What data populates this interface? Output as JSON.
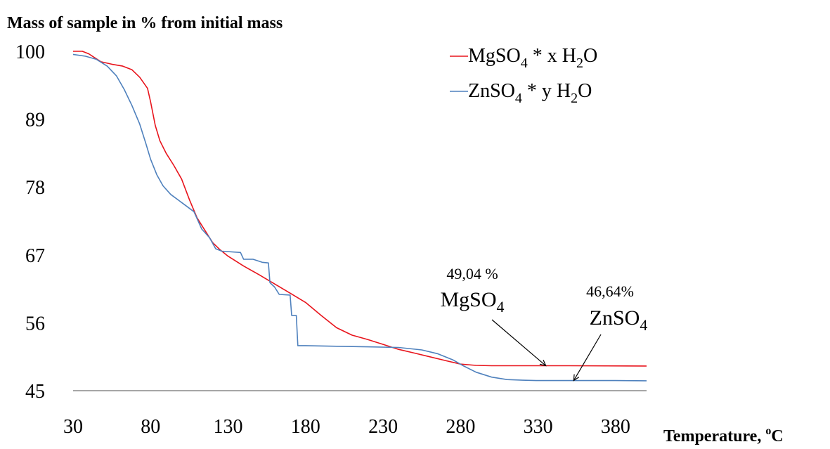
{
  "chart_data": {
    "type": "line",
    "title": "Mass of sample in % from initial mass",
    "xlabel": "Temperature, ",
    "xlabel_sup": "o",
    "xlabel_end": "C",
    "xlim": [
      30,
      400
    ],
    "ylim": [
      45,
      100
    ],
    "x_ticks": [
      "30",
      "80",
      "130",
      "180",
      "230",
      "280",
      "330",
      "380"
    ],
    "y_ticks": [
      "100",
      "89",
      "78",
      "67",
      "56",
      "45"
    ],
    "legend_position": "top-right",
    "series": [
      {
        "name": "MgSO4 * x H2O",
        "color": "#e8141c",
        "points": [
          [
            30,
            100
          ],
          [
            36,
            100
          ],
          [
            40,
            99.6
          ],
          [
            48,
            98.3
          ],
          [
            55,
            97.9
          ],
          [
            62,
            97.6
          ],
          [
            68,
            97.0
          ],
          [
            73,
            95.8
          ],
          [
            78,
            94.0
          ],
          [
            80,
            91.8
          ],
          [
            83,
            88
          ],
          [
            86,
            85.5
          ],
          [
            90,
            83.5
          ],
          [
            95,
            81.5
          ],
          [
            100,
            79.3
          ],
          [
            105,
            76
          ],
          [
            110,
            73
          ],
          [
            115,
            71
          ],
          [
            120,
            69
          ],
          [
            125,
            67.8
          ],
          [
            130,
            66.8
          ],
          [
            140,
            65.2
          ],
          [
            150,
            63.8
          ],
          [
            160,
            62.3
          ],
          [
            170,
            60.8
          ],
          [
            180,
            59.3
          ],
          [
            190,
            57.2
          ],
          [
            200,
            55.2
          ],
          [
            210,
            54.0
          ],
          [
            220,
            53.3
          ],
          [
            230,
            52.5
          ],
          [
            240,
            51.7
          ],
          [
            250,
            51.1
          ],
          [
            260,
            50.5
          ],
          [
            270,
            49.9
          ],
          [
            280,
            49.3
          ],
          [
            290,
            49.1
          ],
          [
            300,
            49.04
          ],
          [
            350,
            49.04
          ],
          [
            400,
            49.0
          ]
        ]
      },
      {
        "name": "ZnSO4 * y H2O",
        "color": "#4f81bd",
        "points": [
          [
            30,
            99.5
          ],
          [
            38,
            99.2
          ],
          [
            45,
            98.7
          ],
          [
            52,
            97.6
          ],
          [
            58,
            96.0
          ],
          [
            63,
            93.8
          ],
          [
            68,
            91.2
          ],
          [
            73,
            88.2
          ],
          [
            77,
            85
          ],
          [
            80,
            82.5
          ],
          [
            84,
            80
          ],
          [
            88,
            78.2
          ],
          [
            93,
            76.8
          ],
          [
            100,
            75.5
          ],
          [
            108,
            74.0
          ],
          [
            113,
            71.2
          ],
          [
            118,
            69.8
          ],
          [
            122,
            68.0
          ],
          [
            126,
            67.6
          ],
          [
            138,
            67.4
          ],
          [
            140,
            66.3
          ],
          [
            146,
            66.3
          ],
          [
            152,
            65.8
          ],
          [
            156,
            65.7
          ],
          [
            157,
            62.5
          ],
          [
            160,
            61.8
          ],
          [
            163,
            60.6
          ],
          [
            170,
            60.5
          ],
          [
            171,
            57.2
          ],
          [
            174,
            57.2
          ],
          [
            175,
            52.3
          ],
          [
            180,
            52.3
          ],
          [
            200,
            52.2
          ],
          [
            220,
            52.1
          ],
          [
            240,
            52.0
          ],
          [
            255,
            51.6
          ],
          [
            265,
            51.0
          ],
          [
            275,
            50.0
          ],
          [
            282,
            49.0
          ],
          [
            290,
            48.0
          ],
          [
            300,
            47.2
          ],
          [
            310,
            46.8
          ],
          [
            320,
            46.7
          ],
          [
            330,
            46.64
          ],
          [
            360,
            46.64
          ],
          [
            380,
            46.64
          ],
          [
            400,
            46.6
          ]
        ]
      }
    ],
    "annotations": [
      {
        "value_text": "49,04 %",
        "compound": "MgSO",
        "subscript": "4",
        "target": [
          335,
          49.04
        ]
      },
      {
        "value_text": "46,64%",
        "compound": "ZnSO",
        "subscript": "4",
        "target": [
          353,
          46.64
        ]
      }
    ],
    "legend": [
      {
        "formula": "MgSO",
        "sub": "4",
        "mid": " * x H",
        "sub2": "2",
        "end": "O"
      },
      {
        "formula": "ZnSO",
        "sub": "4",
        "mid": " * y H",
        "sub2": "2",
        "end": "O"
      }
    ]
  }
}
